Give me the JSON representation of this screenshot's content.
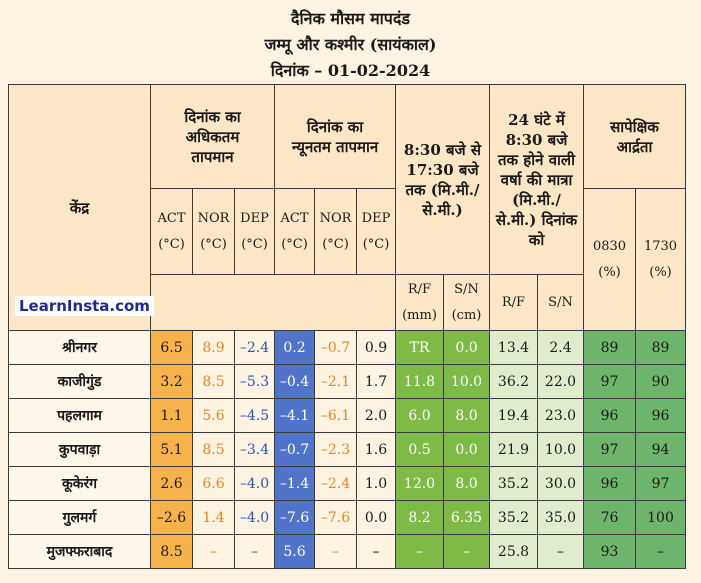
{
  "titles": {
    "line1": "दैनिक मौसम मापदंड",
    "line2": "जम्मू और कश्मीर (सायंकाल)",
    "line3": "दिनांक – 01-02-2024"
  },
  "watermark": "LearnInsta.com",
  "headers": {
    "station": "केंद्र",
    "max_temp": "दिनांक का अधिकतम तापमान",
    "min_temp": "दिनांक का न्यूनतम तापमान",
    "rain_830_1730": "8:30 बजे से 17:30 बजे तक (मि.मी./ से.मी.)",
    "rain_24h": "24 घंटे में 8:30 बजे तक होने वाली वर्षा की मात्रा (मि.मी./ से.मी.) दिनांक को",
    "rel_humidity": "सापेक्षिक आर्द्रता",
    "act": "ACT",
    "nor": "NOR",
    "dep": "DEP",
    "unit_c": "(°C)",
    "rf": "R/F",
    "sn": "S/N",
    "unit_mm": "(mm)",
    "unit_cm": "(cm)",
    "t0830": "0830",
    "t1730": "1730",
    "unit_pct": "(%)"
  },
  "rows": [
    {
      "station": "श्रीनगर",
      "max_act": "6.5",
      "max_nor": "8.9",
      "max_dep": "–2.4",
      "min_act": "0.2",
      "min_nor": "–0.7",
      "min_dep": "0.9",
      "rf": "TR",
      "sn": "0.0",
      "rf24": "13.4",
      "sn24": "2.4",
      "rh0830": "89",
      "rh1730": "89"
    },
    {
      "station": "काजीगुंड",
      "max_act": "3.2",
      "max_nor": "8.5",
      "max_dep": "–5.3",
      "min_act": "–0.4",
      "min_nor": "–2.1",
      "min_dep": "1.7",
      "rf": "11.8",
      "sn": "10.0",
      "rf24": "36.2",
      "sn24": "22.0",
      "rh0830": "97",
      "rh1730": "90"
    },
    {
      "station": "पहलगाम",
      "max_act": "1.1",
      "max_nor": "5.6",
      "max_dep": "–4.5",
      "min_act": "–4.1",
      "min_nor": "–6.1",
      "min_dep": "2.0",
      "rf": "6.0",
      "sn": "8.0",
      "rf24": "19.4",
      "sn24": "23.0",
      "rh0830": "96",
      "rh1730": "96"
    },
    {
      "station": "कुपवाड़ा",
      "max_act": "5.1",
      "max_nor": "8.5",
      "max_dep": "–3.4",
      "min_act": "–0.7",
      "min_nor": "–2.3",
      "min_dep": "1.6",
      "rf": "0.5",
      "sn": "0.0",
      "rf24": "21.9",
      "sn24": "10.0",
      "rh0830": "97",
      "rh1730": "94"
    },
    {
      "station": "कूकेरंग",
      "max_act": "2.6",
      "max_nor": "6.6",
      "max_dep": "–4.0",
      "min_act": "–1.4",
      "min_nor": "–2.4",
      "min_dep": "1.0",
      "rf": "12.0",
      "sn": "8.0",
      "rf24": "35.2",
      "sn24": "30.0",
      "rh0830": "96",
      "rh1730": "97"
    },
    {
      "station": "गुलमर्ग",
      "max_act": "–2.6",
      "max_nor": "1.4",
      "max_dep": "–4.0",
      "min_act": "–7.6",
      "min_nor": "–7.6",
      "min_dep": "0.0",
      "rf": "8.2",
      "sn": "6.35",
      "rf24": "35.2",
      "sn24": "35.0",
      "rh0830": "76",
      "rh1730": "100"
    },
    {
      "station": "मुजफ्फराबाद",
      "max_act": "8.5",
      "max_nor": "–",
      "max_dep": "–",
      "min_act": "5.6",
      "min_nor": "–",
      "min_dep": "–",
      "rf": "–",
      "sn": "–",
      "rf24": "25.8",
      "sn24": "–",
      "rh0830": "93",
      "rh1730": "–"
    }
  ],
  "colors": {
    "background": "#fdf3e3",
    "max_act": "#f7b24c",
    "min_act": "#4f74c9",
    "rain_today": "#7dbb46",
    "rain_24h": "#dfeccd",
    "humidity": "#6cb56b",
    "nor_text": "#e8871f",
    "dep_text": "#2a55b2"
  }
}
